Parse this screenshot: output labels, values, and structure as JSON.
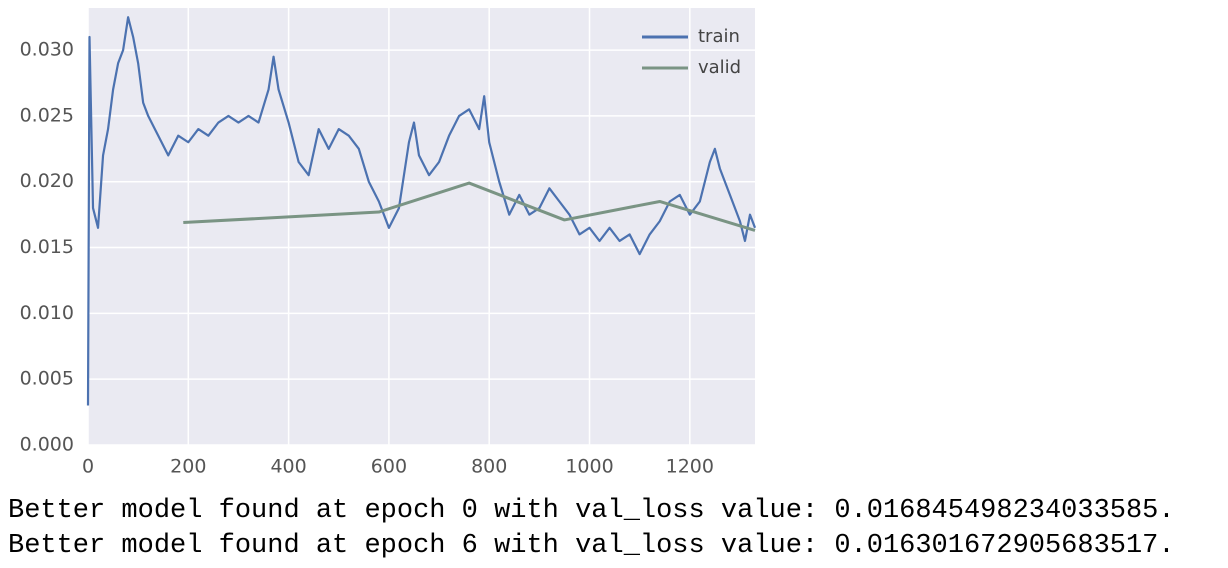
{
  "chart_data": {
    "type": "line",
    "xlim": [
      0,
      1330
    ],
    "xticks": [
      0,
      200,
      400,
      600,
      800,
      1000,
      1200
    ],
    "ylim": [
      0,
      0.0332
    ],
    "yticks": [
      {
        "value": 0,
        "label": "0.000"
      },
      0.005,
      {
        "value": 0.01,
        "label": "0.010"
      },
      0.015,
      {
        "value": 0.02,
        "label": "0.020"
      },
      0.025,
      {
        "value": 0.03,
        "label": "0.030"
      }
    ],
    "grid": true,
    "legend": "upper right",
    "series": [
      {
        "name": "train",
        "color": "#4c72b0",
        "x": [
          0,
          3,
          10,
          20,
          30,
          40,
          50,
          60,
          70,
          80,
          90,
          100,
          110,
          120,
          140,
          160,
          180,
          200,
          220,
          240,
          260,
          280,
          300,
          320,
          340,
          360,
          370,
          380,
          400,
          420,
          440,
          460,
          480,
          500,
          520,
          540,
          560,
          580,
          600,
          620,
          640,
          650,
          660,
          680,
          700,
          720,
          740,
          760,
          780,
          790,
          800,
          820,
          840,
          860,
          880,
          900,
          920,
          940,
          960,
          980,
          1000,
          1020,
          1040,
          1060,
          1080,
          1100,
          1120,
          1140,
          1160,
          1180,
          1200,
          1220,
          1240,
          1250,
          1260,
          1280,
          1300,
          1310,
          1320,
          1330
        ],
        "values": [
          0.003,
          0.031,
          0.018,
          0.0165,
          0.022,
          0.024,
          0.027,
          0.029,
          0.03,
          0.0325,
          0.031,
          0.029,
          0.026,
          0.025,
          0.0235,
          0.022,
          0.0235,
          0.023,
          0.024,
          0.0235,
          0.0245,
          0.025,
          0.0245,
          0.025,
          0.0245,
          0.027,
          0.0295,
          0.027,
          0.0245,
          0.0215,
          0.0205,
          0.024,
          0.0225,
          0.024,
          0.0235,
          0.0225,
          0.02,
          0.0185,
          0.0165,
          0.018,
          0.023,
          0.0245,
          0.022,
          0.0205,
          0.0215,
          0.0235,
          0.025,
          0.0255,
          0.024,
          0.0265,
          0.023,
          0.02,
          0.0175,
          0.019,
          0.0175,
          0.018,
          0.0195,
          0.0185,
          0.0175,
          0.016,
          0.0165,
          0.0155,
          0.0165,
          0.0155,
          0.016,
          0.0145,
          0.016,
          0.017,
          0.0185,
          0.019,
          0.0175,
          0.0185,
          0.0215,
          0.0225,
          0.021,
          0.019,
          0.017,
          0.0155,
          0.0175,
          0.0165
        ]
      },
      {
        "name": "valid",
        "color": "#7a9484",
        "x": [
          190,
          580,
          760,
          950,
          1140,
          1330
        ],
        "values": [
          0.0169,
          0.0177,
          0.0199,
          0.0171,
          0.0185,
          0.0163
        ]
      }
    ]
  },
  "output_lines": [
    "Better model found at epoch 0 with val_loss value: 0.016845498234033585.",
    "Better model found at epoch 6 with val_loss value: 0.016301672905683517."
  ]
}
